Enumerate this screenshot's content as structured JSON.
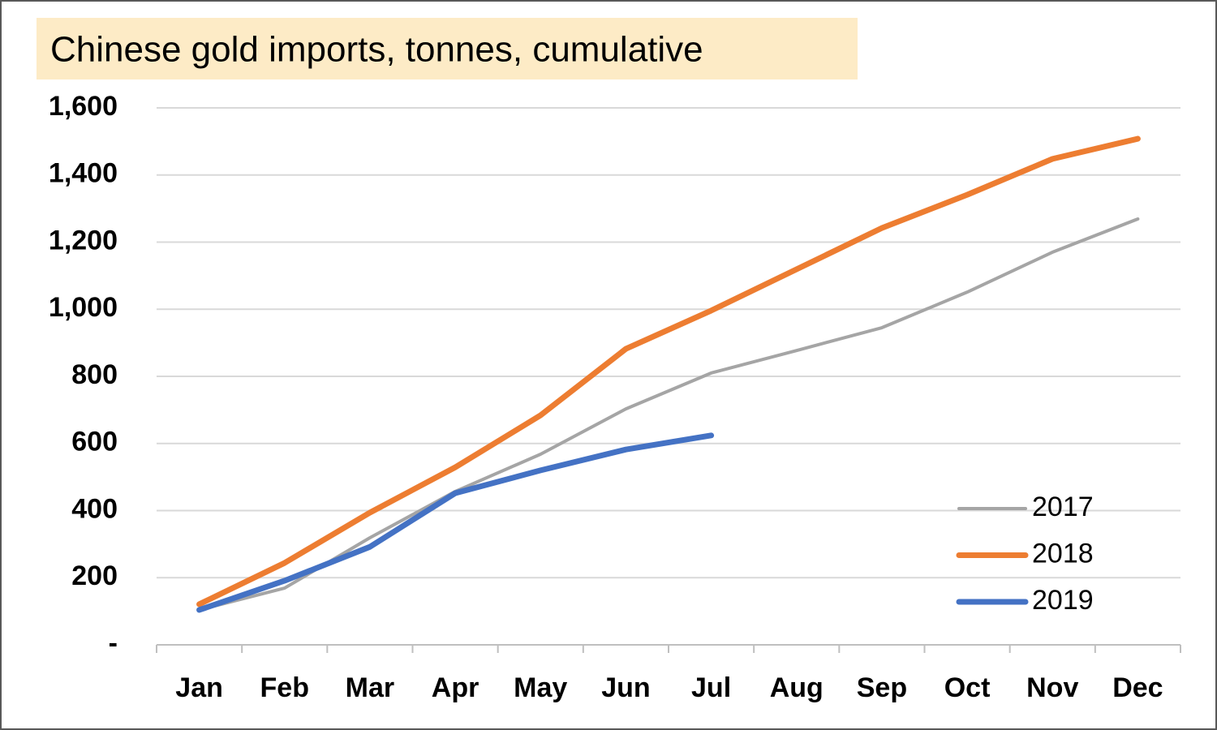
{
  "chart_data": {
    "type": "line",
    "title": "Chinese gold imports, tonnes, cumulative",
    "categories": [
      "Jan",
      "Feb",
      "Mar",
      "Apr",
      "May",
      "Jun",
      "Jul",
      "Aug",
      "Sep",
      "Oct",
      "Nov",
      "Dec"
    ],
    "series": [
      {
        "name": "2017",
        "color": "#a5a5a5",
        "values": [
          104,
          169,
          319,
          457,
          568,
          703,
          810,
          877,
          945,
          1051,
          1170,
          1269
        ]
      },
      {
        "name": "2018",
        "color": "#ed7d31",
        "values": [
          121,
          244,
          394,
          529,
          684,
          882,
          996,
          1119,
          1242,
          1341,
          1448,
          1508
        ]
      },
      {
        "name": "2019",
        "color": "#4472c4",
        "values": [
          104,
          191,
          292,
          452,
          520,
          582,
          624,
          null,
          null,
          null,
          null,
          null
        ]
      }
    ],
    "ylim": [
      0,
      1600
    ],
    "yticks": [
      {
        "value": 0,
        "label": "-"
      },
      200,
      400,
      600,
      800,
      {
        "value": 1000,
        "label": "1,000"
      },
      {
        "value": 1200,
        "label": "1,200"
      },
      {
        "value": 1400,
        "label": "1,400"
      },
      {
        "value": 1600,
        "label": "1,600"
      }
    ],
    "grid": true,
    "legend": "lower right"
  }
}
